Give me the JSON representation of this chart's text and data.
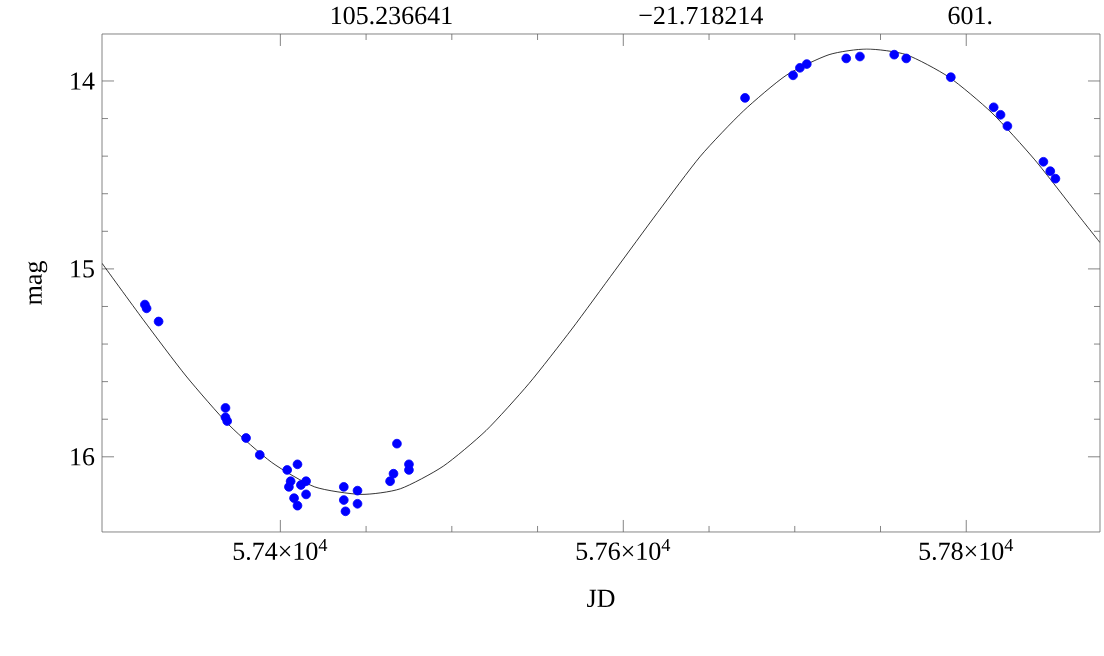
{
  "chart_data": {
    "type": "scatter",
    "xlabel": "JD",
    "ylabel": "mag",
    "annotations": [
      "105.236641",
      "−21.718214",
      "601."
    ],
    "xlim": [
      57296,
      57878
    ],
    "ylim": [
      16.4,
      13.75
    ],
    "xticks": [
      {
        "value": 57400,
        "label": "5.74×10$^{4}$"
      },
      {
        "value": 57600,
        "label": "5.76×10$^{4}$"
      },
      {
        "value": 57800,
        "label": "5.78×10$^{4}$"
      }
    ],
    "yticks": [
      14,
      15,
      16
    ],
    "grid": false,
    "series": [
      {
        "type": "line",
        "color": "#000000",
        "marker": "none",
        "line_style": "solid",
        "x": [
          57296,
          57320,
          57345,
          57370,
          57395,
          57420,
          57447,
          57470,
          57495,
          57520,
          57545,
          57570,
          57595,
          57620,
          57645,
          57670,
          57695,
          57720,
          57742,
          57765,
          57790,
          57815,
          57840,
          57865,
          57878
        ],
        "values": [
          14.97,
          15.27,
          15.57,
          15.83,
          16.03,
          16.16,
          16.2,
          16.17,
          16.05,
          15.86,
          15.61,
          15.32,
          15.01,
          14.7,
          14.4,
          14.16,
          13.97,
          13.86,
          13.83,
          13.86,
          13.98,
          14.17,
          14.42,
          14.71,
          14.86
        ]
      },
      {
        "color": "#0000ff",
        "marker": "circle",
        "x": [
          57321,
          57322,
          57329,
          57368,
          57368,
          57369,
          57380,
          57388,
          57404,
          57410,
          57406,
          57412,
          57415,
          57415,
          57408,
          57410,
          57405,
          57437,
          57437,
          57438,
          57445,
          57445,
          57464,
          57466,
          57468,
          57475,
          57475,
          57671,
          57699,
          57703,
          57707,
          57730,
          57738,
          57758,
          57765,
          57791,
          57816,
          57820,
          57824,
          57845,
          57849,
          57852
        ],
        "values": [
          15.19,
          15.21,
          15.28,
          15.74,
          15.79,
          15.81,
          15.9,
          15.99,
          16.07,
          16.04,
          16.13,
          16.15,
          16.13,
          16.2,
          16.22,
          16.26,
          16.16,
          16.16,
          16.23,
          16.29,
          16.18,
          16.25,
          16.13,
          16.09,
          15.93,
          16.04,
          16.07,
          14.09,
          13.97,
          13.93,
          13.91,
          13.88,
          13.87,
          13.86,
          13.88,
          13.98,
          14.14,
          14.18,
          14.24,
          14.43,
          14.48,
          14.52
        ]
      }
    ]
  }
}
